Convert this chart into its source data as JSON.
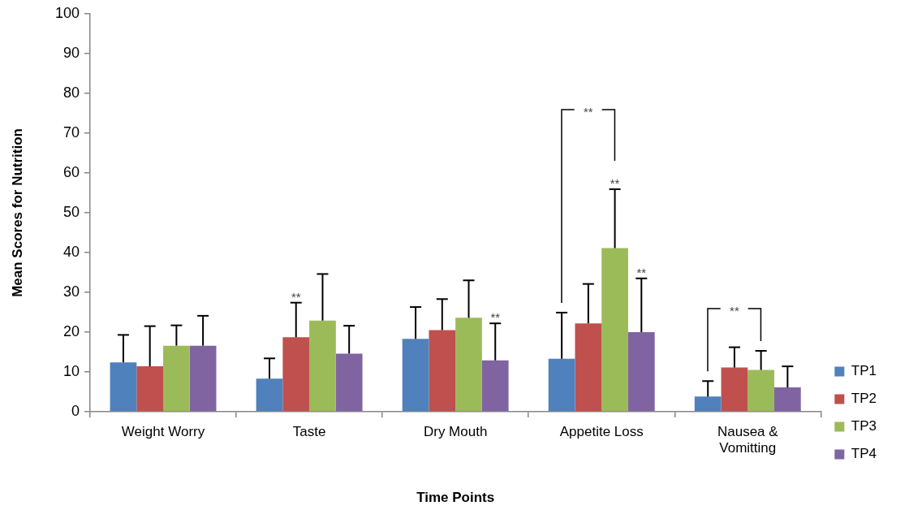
{
  "chart_data": {
    "type": "bar",
    "xlabel": "Time Points",
    "ylabel": "Mean Scores for Nutrition",
    "categories": [
      "Weight Worry",
      "Taste",
      "Dry Mouth",
      "Appetite Loss",
      "Nausea & Vomitting"
    ],
    "series": [
      {
        "name": "TP1",
        "color": "#4f81bd",
        "values": [
          12.4,
          8.3,
          18.3,
          13.3,
          3.8
        ],
        "errors": [
          [
            12.4,
            19.3
          ],
          [
            8.3,
            13.4
          ],
          [
            18.3,
            26.3
          ],
          [
            13.3,
            24.9
          ],
          [
            3.8,
            7.7
          ]
        ]
      },
      {
        "name": "TP2",
        "color": "#c0504d",
        "values": [
          11.4,
          18.7,
          20.5,
          22.2,
          11.1
        ],
        "errors": [
          [
            11.4,
            21.5
          ],
          [
            18.7,
            27.4
          ],
          [
            20.5,
            28.3
          ],
          [
            22.2,
            32.1
          ],
          [
            11.1,
            16.2
          ]
        ]
      },
      {
        "name": "TP3",
        "color": "#9bbb59",
        "values": [
          16.6,
          22.9,
          23.6,
          41.1,
          10.5
        ],
        "errors": [
          [
            16.6,
            21.7
          ],
          [
            22.9,
            34.6
          ],
          [
            23.6,
            33.0
          ],
          [
            41.1,
            55.9
          ],
          [
            10.5,
            15.3
          ]
        ]
      },
      {
        "name": "TP4",
        "color": "#8064a2",
        "values": [
          16.6,
          14.6,
          12.9,
          20.0,
          6.1
        ],
        "errors": [
          [
            16.6,
            24.1
          ],
          [
            14.6,
            21.6
          ],
          [
            12.9,
            22.2
          ],
          [
            20.0,
            33.5
          ],
          [
            6.1,
            11.4
          ]
        ]
      }
    ],
    "ylim": [
      0,
      100
    ],
    "yticks": [
      0,
      10,
      20,
      30,
      40,
      50,
      60,
      70,
      80,
      90,
      100
    ],
    "legend": "right",
    "annotations": [
      "**",
      "**",
      "**",
      "**",
      "**",
      "**"
    ]
  }
}
